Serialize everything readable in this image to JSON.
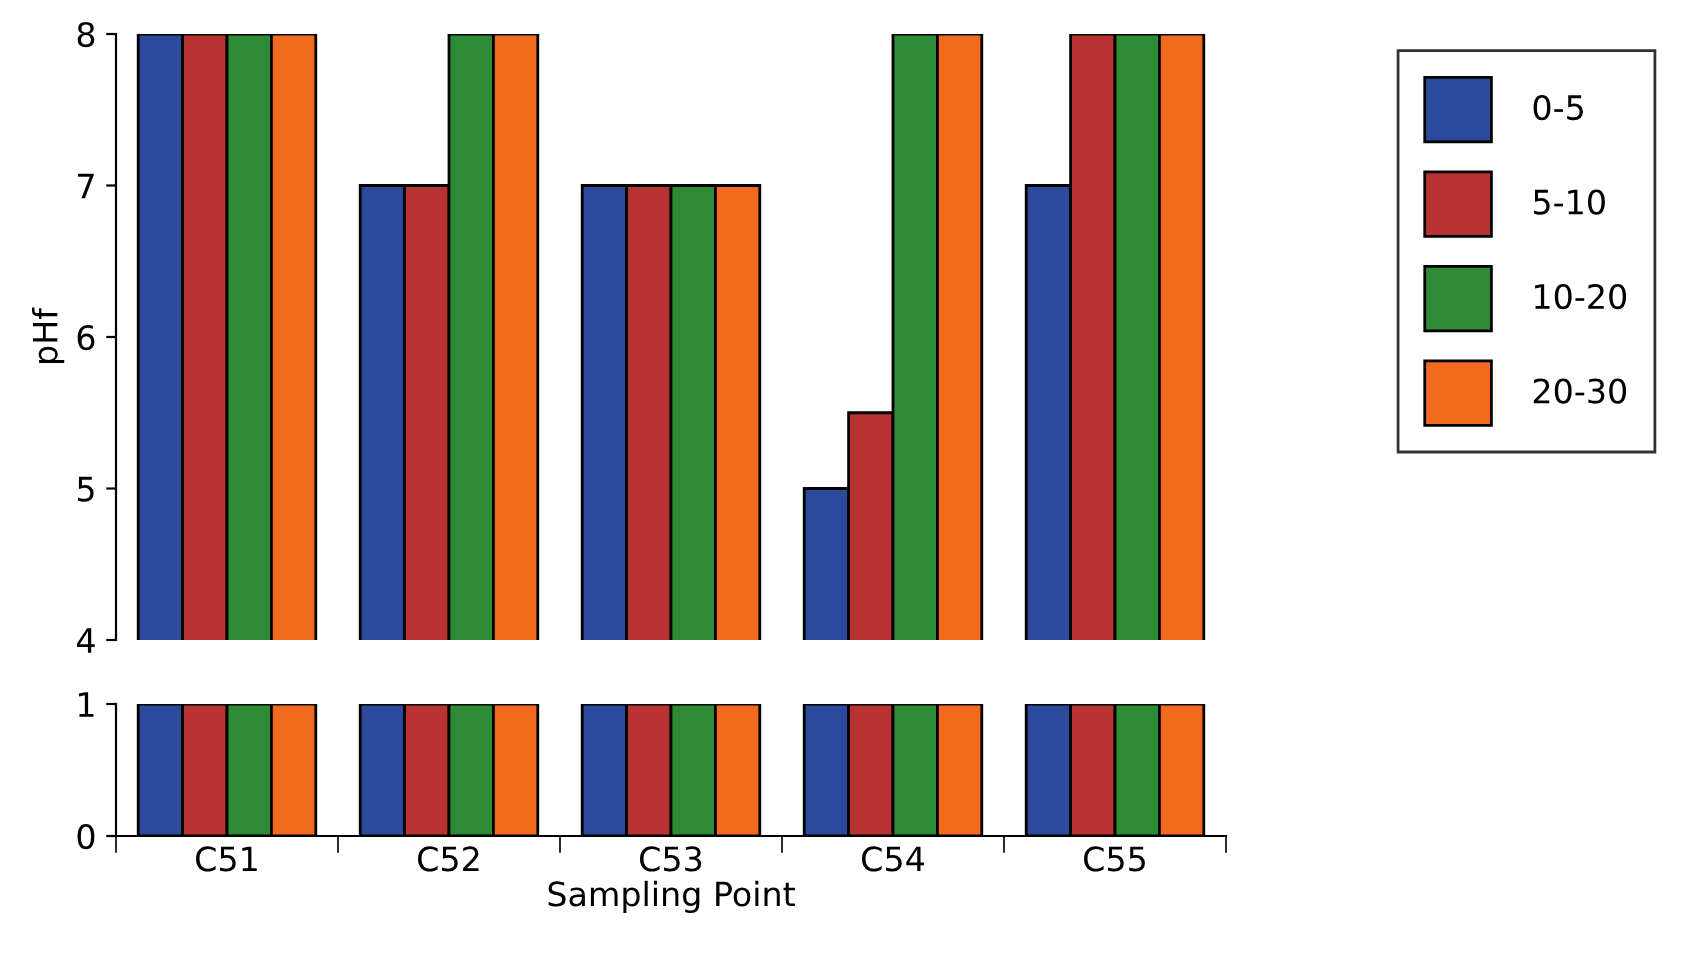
{
  "chart_data": [
    {
      "type": "bar",
      "ylabel": "pHf",
      "categories": [
        null,
        null,
        null,
        null,
        null
      ],
      "ylim": [
        4,
        8
      ],
      "yticks": [
        4,
        5,
        6,
        7,
        8
      ],
      "tick_labels": "y",
      "legend": "right",
      "grid": false,
      "series": [
        {
          "name": "0-5",
          "color": "#2b4a9c",
          "values": [
            8,
            7,
            7,
            5,
            7
          ]
        },
        {
          "name": "5-10",
          "color": "#b83232",
          "values": [
            8,
            7,
            7,
            5.5,
            8
          ]
        },
        {
          "name": "10-20",
          "color": "#2e8b35",
          "values": [
            8,
            8,
            7,
            8,
            8
          ]
        },
        {
          "name": "20-30",
          "color": "#f26a1e",
          "values": [
            8,
            8,
            7,
            8,
            8
          ]
        }
      ]
    },
    {
      "type": "bar",
      "xlabel": "Sampling Point",
      "categories": [
        "C51",
        "C52",
        "C53",
        "C54",
        "C55"
      ],
      "ylim": [
        0,
        1
      ],
      "yticks": [
        0,
        1
      ],
      "grid": false,
      "series": [
        {
          "color": "#2b4a9c",
          "values": [
            1,
            1,
            1,
            1,
            1
          ]
        },
        {
          "color": "#b83232",
          "values": [
            1,
            1,
            1,
            1,
            1
          ]
        },
        {
          "color": "#2e8b35",
          "values": [
            1,
            1,
            1,
            1,
            1
          ]
        },
        {
          "color": "#f26a1e",
          "values": [
            1,
            1,
            1,
            1,
            1
          ]
        }
      ]
    }
  ]
}
